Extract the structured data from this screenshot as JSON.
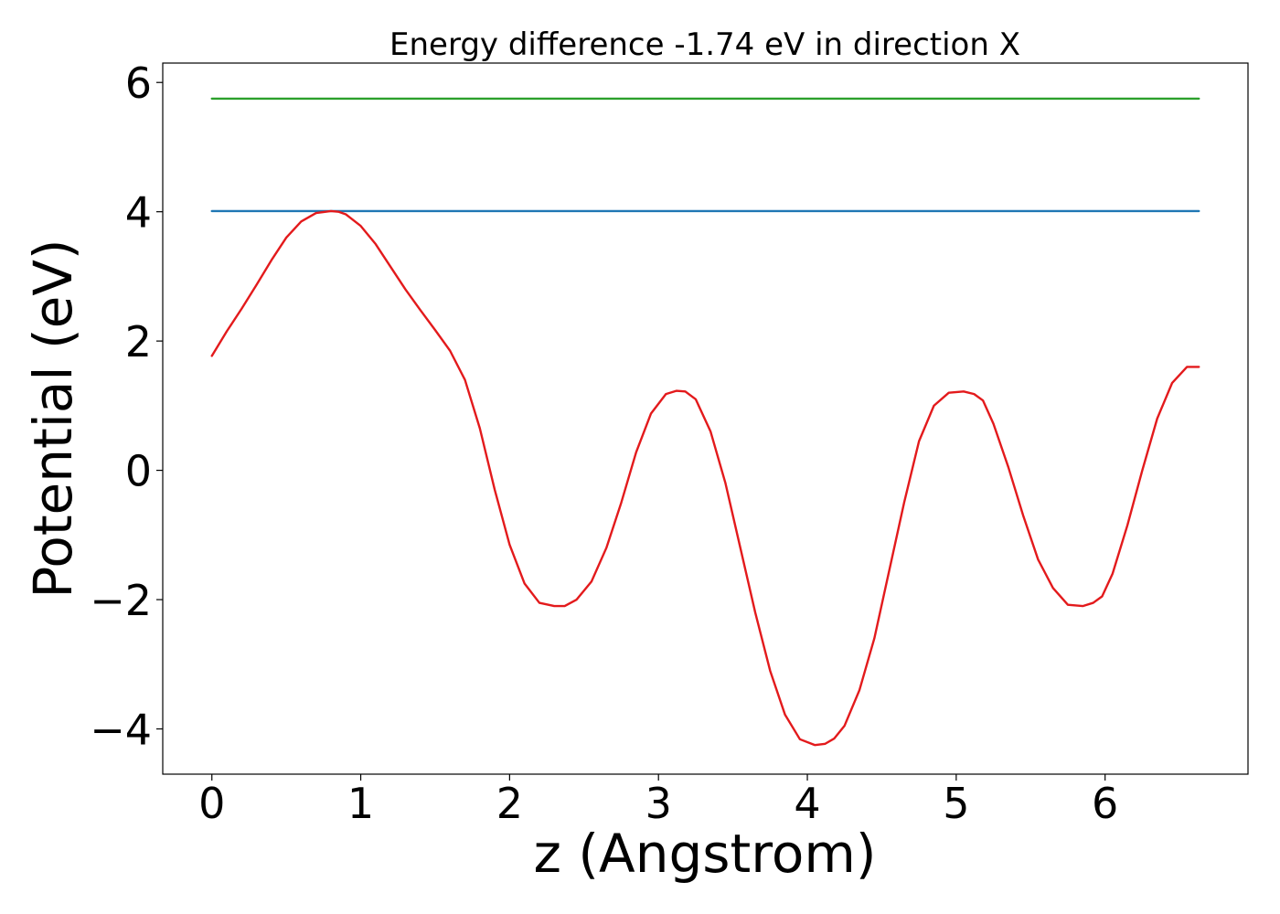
{
  "chart_data": {
    "type": "line",
    "title": "Energy difference -1.74 eV in direction X",
    "xlabel": "z (Angstrom)",
    "ylabel": "Potential (eV)",
    "xlim": [
      -0.33,
      6.96
    ],
    "ylim": [
      -4.7,
      6.3
    ],
    "xticks": [
      0,
      1,
      2,
      3,
      4,
      5,
      6
    ],
    "yticks": [
      6,
      4,
      2,
      0,
      -2,
      -4
    ],
    "ytick_labels": [
      "6",
      "4",
      "2",
      "0",
      "−2",
      "−4"
    ],
    "grid": false,
    "series": [
      {
        "color": "#2ca02c",
        "x": [
          0,
          6.63
        ],
        "y": [
          5.75,
          5.75
        ]
      },
      {
        "color": "#1f77b4",
        "x": [
          0,
          6.63
        ],
        "y": [
          4.01,
          4.01
        ]
      },
      {
        "color": "#e31a1c",
        "x": [
          0.0,
          0.1,
          0.2,
          0.3,
          0.4,
          0.5,
          0.6,
          0.7,
          0.8,
          0.85,
          0.9,
          1.0,
          1.1,
          1.2,
          1.3,
          1.4,
          1.5,
          1.6,
          1.7,
          1.8,
          1.9,
          2.0,
          2.1,
          2.2,
          2.3,
          2.37,
          2.45,
          2.55,
          2.65,
          2.75,
          2.85,
          2.95,
          3.05,
          3.12,
          3.18,
          3.25,
          3.35,
          3.45,
          3.55,
          3.65,
          3.75,
          3.85,
          3.95,
          4.05,
          4.12,
          4.18,
          4.25,
          4.35,
          4.45,
          4.55,
          4.65,
          4.75,
          4.85,
          4.95,
          5.05,
          5.12,
          5.18,
          5.25,
          5.35,
          5.45,
          5.55,
          5.65,
          5.75,
          5.85,
          5.92,
          5.98,
          6.05,
          6.15,
          6.25,
          6.35,
          6.45,
          6.55,
          6.63
        ],
        "y": [
          1.77,
          2.15,
          2.5,
          2.87,
          3.25,
          3.6,
          3.85,
          3.98,
          4.01,
          4.0,
          3.96,
          3.78,
          3.5,
          3.15,
          2.8,
          2.48,
          2.17,
          1.85,
          1.4,
          0.65,
          -0.3,
          -1.15,
          -1.75,
          -2.05,
          -2.1,
          -2.1,
          -2.0,
          -1.72,
          -1.2,
          -0.5,
          0.28,
          0.88,
          1.18,
          1.23,
          1.22,
          1.1,
          0.6,
          -0.2,
          -1.2,
          -2.2,
          -3.1,
          -3.78,
          -4.16,
          -4.25,
          -4.23,
          -4.15,
          -3.95,
          -3.4,
          -2.6,
          -1.55,
          -0.5,
          0.45,
          1.0,
          1.2,
          1.22,
          1.18,
          1.08,
          0.72,
          0.05,
          -0.7,
          -1.38,
          -1.82,
          -2.08,
          -2.1,
          -2.05,
          -1.95,
          -1.6,
          -0.85,
          0.0,
          0.8,
          1.35,
          1.6,
          1.6
        ]
      }
    ]
  }
}
